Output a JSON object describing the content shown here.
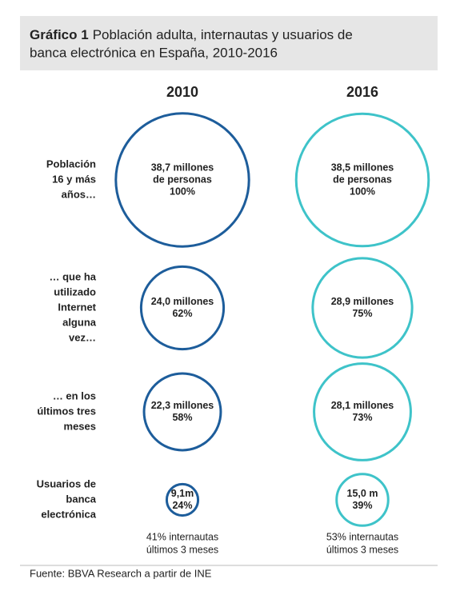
{
  "title": {
    "prefix": "Gráfico 1",
    "lines": [
      "Población adulta, internautas y usuarios de",
      "banca electrónica en España, 2010-2016"
    ]
  },
  "row_labels": [
    [
      "Población",
      "16 y más",
      "años…"
    ],
    [
      "… que ha",
      "utilizado",
      "Internet",
      "alguna",
      "vez…"
    ],
    [
      "… en los",
      "últimos tres",
      "meses"
    ],
    [
      "Usuarios de",
      "banca",
      "electrónica"
    ]
  ],
  "columns": [
    {
      "year": "2010",
      "color": "#1d5d9b",
      "cells": [
        {
          "value": 38.7,
          "lines": [
            "38,7 millones",
            "de personas",
            "100%"
          ]
        },
        {
          "value": 24.0,
          "lines": [
            "24,0 millones",
            "62%"
          ]
        },
        {
          "value": 22.3,
          "lines": [
            "22,3 millones",
            "58%"
          ]
        },
        {
          "value": 9.1,
          "lines": [
            "9,1m",
            "24%"
          ]
        }
      ],
      "note": [
        "41% internautas",
        "últimos 3 meses"
      ]
    },
    {
      "year": "2016",
      "color": "#3ec3c9",
      "cells": [
        {
          "value": 38.5,
          "lines": [
            "38,5 millones",
            "de personas",
            "100%"
          ]
        },
        {
          "value": 28.9,
          "lines": [
            "28,9 millones",
            "75%"
          ]
        },
        {
          "value": 28.1,
          "lines": [
            "28,1 millones",
            "73%"
          ]
        },
        {
          "value": 15.0,
          "lines": [
            "15,0 m",
            "39%"
          ]
        }
      ],
      "note": [
        "53% internautas",
        "últimos 3 meses"
      ]
    }
  ],
  "source": "Fuente: BBVA Research a partir de INE"
}
